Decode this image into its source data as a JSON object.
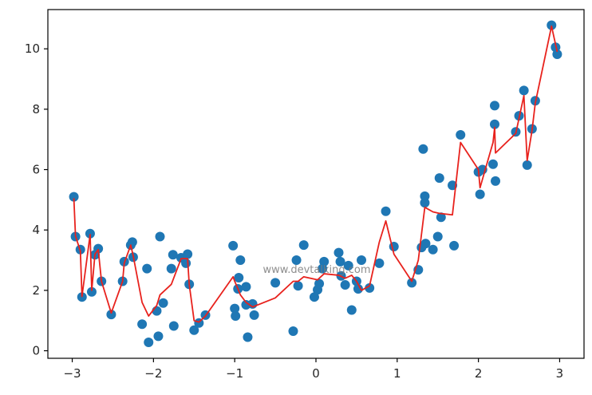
{
  "watermark": "www.devtalking.com",
  "colors": {
    "points": "#1f77b4",
    "line": "#e8221d",
    "axes": "#000000"
  },
  "chart_data": {
    "type": "scatter",
    "title": "",
    "xlabel": "",
    "ylabel": "",
    "xlim": [
      -3.3,
      3.3
    ],
    "ylim": [
      -0.25,
      11.3
    ],
    "xticks": [
      {
        "value": -3,
        "label": "−3"
      },
      {
        "value": -2,
        "label": "−2"
      },
      {
        "value": -1,
        "label": "−1"
      },
      {
        "value": 0,
        "label": "0"
      },
      {
        "value": 1,
        "label": "1"
      },
      {
        "value": 2,
        "label": "2"
      },
      {
        "value": 3,
        "label": "3"
      }
    ],
    "yticks": [
      {
        "value": 0,
        "label": "0"
      },
      {
        "value": 2,
        "label": "2"
      },
      {
        "value": 4,
        "label": "4"
      },
      {
        "value": 6,
        "label": "6"
      },
      {
        "value": 8,
        "label": "8"
      },
      {
        "value": 10,
        "label": "10"
      }
    ],
    "grid": false,
    "series": [
      {
        "kind": "scatter",
        "points": [
          [
            -2.98,
            5.1
          ],
          [
            -2.96,
            3.78
          ],
          [
            -2.9,
            3.35
          ],
          [
            -2.88,
            1.78
          ],
          [
            -2.78,
            3.88
          ],
          [
            -2.76,
            1.95
          ],
          [
            -2.72,
            3.18
          ],
          [
            -2.68,
            3.38
          ],
          [
            -2.64,
            2.3
          ],
          [
            -2.52,
            1.2
          ],
          [
            -2.38,
            2.3
          ],
          [
            -2.36,
            2.95
          ],
          [
            -2.28,
            3.5
          ],
          [
            -2.26,
            3.6
          ],
          [
            -2.25,
            3.1
          ],
          [
            -2.14,
            0.88
          ],
          [
            -2.08,
            2.72
          ],
          [
            -2.06,
            0.28
          ],
          [
            -1.96,
            1.32
          ],
          [
            -1.94,
            0.48
          ],
          [
            -1.92,
            3.78
          ],
          [
            -1.88,
            1.58
          ],
          [
            -1.78,
            2.72
          ],
          [
            -1.76,
            3.18
          ],
          [
            -1.75,
            0.82
          ],
          [
            -1.66,
            3.08
          ],
          [
            -1.6,
            2.9
          ],
          [
            -1.58,
            3.2
          ],
          [
            -1.56,
            2.2
          ],
          [
            -1.5,
            0.68
          ],
          [
            -1.44,
            0.92
          ],
          [
            -1.36,
            1.18
          ],
          [
            -1.02,
            3.48
          ],
          [
            -1.0,
            1.4
          ],
          [
            -0.99,
            1.15
          ],
          [
            -0.96,
            2.05
          ],
          [
            -0.95,
            2.42
          ],
          [
            -0.93,
            3.0
          ],
          [
            -0.86,
            2.12
          ],
          [
            -0.86,
            1.52
          ],
          [
            -0.84,
            0.45
          ],
          [
            -0.78,
            1.55
          ],
          [
            -0.76,
            1.18
          ],
          [
            -0.5,
            2.25
          ],
          [
            -0.28,
            0.65
          ],
          [
            -0.24,
            3.0
          ],
          [
            -0.22,
            2.15
          ],
          [
            -0.15,
            3.5
          ],
          [
            -0.02,
            1.78
          ],
          [
            0.02,
            2.02
          ],
          [
            0.04,
            2.22
          ],
          [
            0.08,
            2.72
          ],
          [
            0.1,
            2.95
          ],
          [
            0.28,
            3.25
          ],
          [
            0.3,
            2.95
          ],
          [
            0.31,
            2.48
          ],
          [
            0.36,
            2.18
          ],
          [
            0.4,
            2.82
          ],
          [
            0.44,
            1.35
          ],
          [
            0.5,
            2.3
          ],
          [
            0.52,
            2.05
          ],
          [
            0.56,
            3.0
          ],
          [
            0.66,
            2.08
          ],
          [
            0.78,
            2.9
          ],
          [
            0.86,
            4.62
          ],
          [
            0.96,
            3.45
          ],
          [
            1.18,
            2.25
          ],
          [
            1.26,
            2.68
          ],
          [
            1.3,
            3.42
          ],
          [
            1.32,
            6.68
          ],
          [
            1.34,
            4.9
          ],
          [
            1.34,
            5.12
          ],
          [
            1.35,
            3.55
          ],
          [
            1.44,
            3.35
          ],
          [
            1.5,
            3.78
          ],
          [
            1.52,
            5.72
          ],
          [
            1.54,
            4.42
          ],
          [
            1.68,
            5.48
          ],
          [
            1.7,
            3.48
          ],
          [
            1.78,
            7.15
          ],
          [
            2.0,
            5.92
          ],
          [
            2.02,
            5.18
          ],
          [
            2.05,
            6.0
          ],
          [
            2.18,
            6.18
          ],
          [
            2.2,
            8.12
          ],
          [
            2.2,
            7.5
          ],
          [
            2.21,
            5.62
          ],
          [
            2.46,
            7.25
          ],
          [
            2.5,
            7.78
          ],
          [
            2.56,
            8.62
          ],
          [
            2.6,
            6.15
          ],
          [
            2.66,
            7.35
          ],
          [
            2.7,
            8.28
          ],
          [
            2.9,
            10.78
          ],
          [
            2.95,
            10.05
          ],
          [
            2.97,
            9.82
          ]
        ]
      },
      {
        "kind": "line",
        "points": [
          [
            -2.98,
            5.05
          ],
          [
            -2.96,
            3.8
          ],
          [
            -2.9,
            3.3
          ],
          [
            -2.88,
            1.8
          ],
          [
            -2.78,
            3.85
          ],
          [
            -2.76,
            2.0
          ],
          [
            -2.72,
            3.2
          ],
          [
            -2.68,
            3.35
          ],
          [
            -2.64,
            2.3
          ],
          [
            -2.52,
            1.25
          ],
          [
            -2.38,
            2.3
          ],
          [
            -2.36,
            2.9
          ],
          [
            -2.28,
            3.5
          ],
          [
            -2.25,
            3.15
          ],
          [
            -2.14,
            1.6
          ],
          [
            -2.06,
            1.15
          ],
          [
            -1.96,
            1.5
          ],
          [
            -1.92,
            1.85
          ],
          [
            -1.78,
            2.2
          ],
          [
            -1.66,
            3.05
          ],
          [
            -1.58,
            3.05
          ],
          [
            -1.56,
            2.2
          ],
          [
            -1.5,
            1.0
          ],
          [
            -1.44,
            0.95
          ],
          [
            -1.36,
            1.15
          ],
          [
            -1.02,
            2.45
          ],
          [
            -1.0,
            2.3
          ],
          [
            -0.96,
            2.05
          ],
          [
            -0.93,
            1.85
          ],
          [
            -0.86,
            1.6
          ],
          [
            -0.78,
            1.45
          ],
          [
            -0.5,
            1.75
          ],
          [
            -0.28,
            2.3
          ],
          [
            -0.22,
            2.3
          ],
          [
            -0.15,
            2.45
          ],
          [
            0.02,
            2.35
          ],
          [
            0.1,
            2.55
          ],
          [
            0.28,
            2.5
          ],
          [
            0.36,
            2.4
          ],
          [
            0.44,
            2.5
          ],
          [
            0.5,
            2.3
          ],
          [
            0.56,
            2.0
          ],
          [
            0.66,
            2.15
          ],
          [
            0.78,
            3.6
          ],
          [
            0.86,
            4.3
          ],
          [
            0.96,
            3.2
          ],
          [
            1.18,
            2.3
          ],
          [
            1.26,
            3.0
          ],
          [
            1.34,
            4.75
          ],
          [
            1.44,
            4.6
          ],
          [
            1.52,
            4.55
          ],
          [
            1.68,
            4.5
          ],
          [
            1.78,
            6.9
          ],
          [
            2.0,
            6.0
          ],
          [
            2.02,
            5.4
          ],
          [
            2.18,
            6.9
          ],
          [
            2.2,
            7.4
          ],
          [
            2.21,
            6.55
          ],
          [
            2.46,
            7.2
          ],
          [
            2.56,
            8.45
          ],
          [
            2.6,
            6.3
          ],
          [
            2.66,
            7.3
          ],
          [
            2.7,
            8.2
          ],
          [
            2.9,
            10.75
          ],
          [
            2.97,
            9.9
          ]
        ]
      }
    ]
  }
}
